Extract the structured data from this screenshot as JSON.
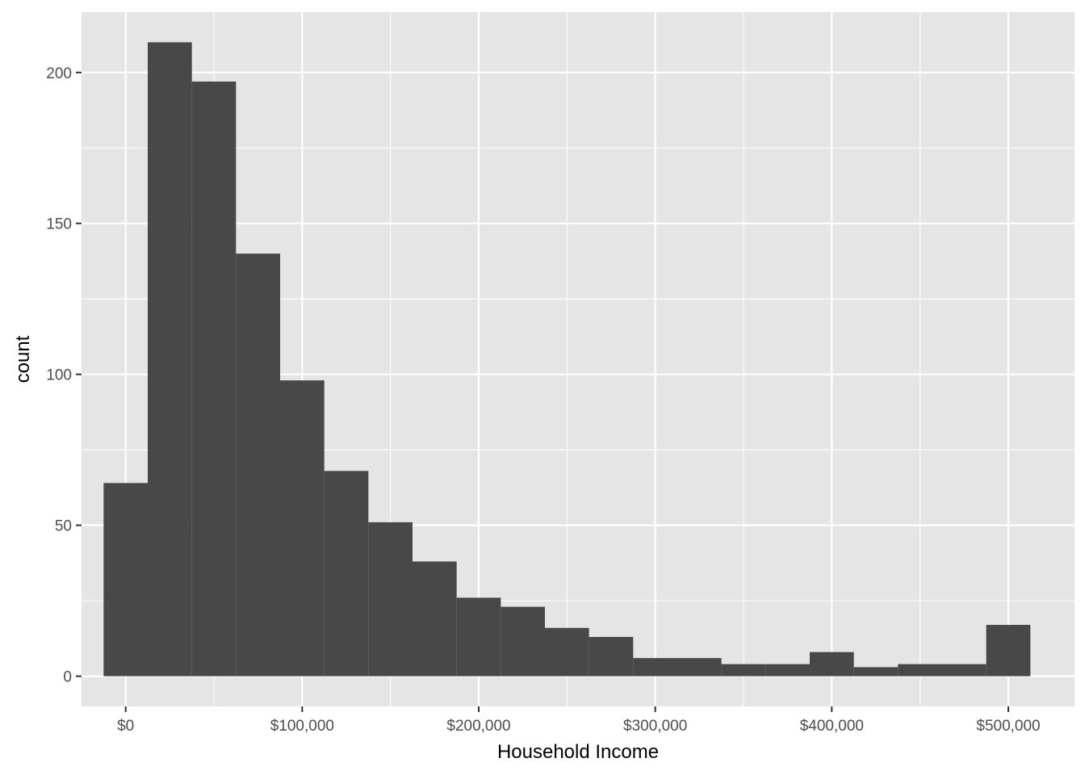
{
  "chart_data": {
    "type": "bar",
    "subtype": "histogram",
    "title": "",
    "xlabel": "Household Income",
    "ylabel": "count",
    "bin_width": 25000,
    "bins": [
      {
        "start": -12500,
        "end": 12500,
        "count": 64
      },
      {
        "start": 12500,
        "end": 37500,
        "count": 210
      },
      {
        "start": 37500,
        "end": 62500,
        "count": 197
      },
      {
        "start": 62500,
        "end": 87500,
        "count": 140
      },
      {
        "start": 87500,
        "end": 112500,
        "count": 98
      },
      {
        "start": 112500,
        "end": 137500,
        "count": 68
      },
      {
        "start": 137500,
        "end": 162500,
        "count": 51
      },
      {
        "start": 162500,
        "end": 187500,
        "count": 38
      },
      {
        "start": 187500,
        "end": 212500,
        "count": 26
      },
      {
        "start": 212500,
        "end": 237500,
        "count": 23
      },
      {
        "start": 237500,
        "end": 262500,
        "count": 16
      },
      {
        "start": 262500,
        "end": 287500,
        "count": 13
      },
      {
        "start": 287500,
        "end": 312500,
        "count": 6
      },
      {
        "start": 312500,
        "end": 337500,
        "count": 6
      },
      {
        "start": 337500,
        "end": 362500,
        "count": 4
      },
      {
        "start": 362500,
        "end": 387500,
        "count": 4
      },
      {
        "start": 387500,
        "end": 412500,
        "count": 8
      },
      {
        "start": 412500,
        "end": 437500,
        "count": 3
      },
      {
        "start": 437500,
        "end": 462500,
        "count": 4
      },
      {
        "start": 462500,
        "end": 487500,
        "count": 4
      },
      {
        "start": 487500,
        "end": 512500,
        "count": 17
      }
    ],
    "xlim": [
      -25000,
      537500
    ],
    "ylim": [
      -10,
      220
    ],
    "x_ticks": [
      {
        "value": 0,
        "label": "$0"
      },
      {
        "value": 100000,
        "label": "$100,000"
      },
      {
        "value": 200000,
        "label": "$200,000"
      },
      {
        "value": 300000,
        "label": "$300,000"
      },
      {
        "value": 400000,
        "label": "$400,000"
      },
      {
        "value": 500000,
        "label": "$500,000"
      }
    ],
    "y_ticks": [
      {
        "value": 0,
        "label": "0"
      },
      {
        "value": 50,
        "label": "50"
      },
      {
        "value": 100,
        "label": "100"
      },
      {
        "value": 150,
        "label": "150"
      },
      {
        "value": 200,
        "label": "200"
      }
    ],
    "grid": true,
    "legend": "none",
    "colors": {
      "panel_background": "#e5e5e5",
      "grid_line": "#ffffff",
      "bar_fill": "#484848",
      "tick_text": "#4d4d4d",
      "tick_mark": "#333333",
      "axis_title": "#000000"
    }
  }
}
